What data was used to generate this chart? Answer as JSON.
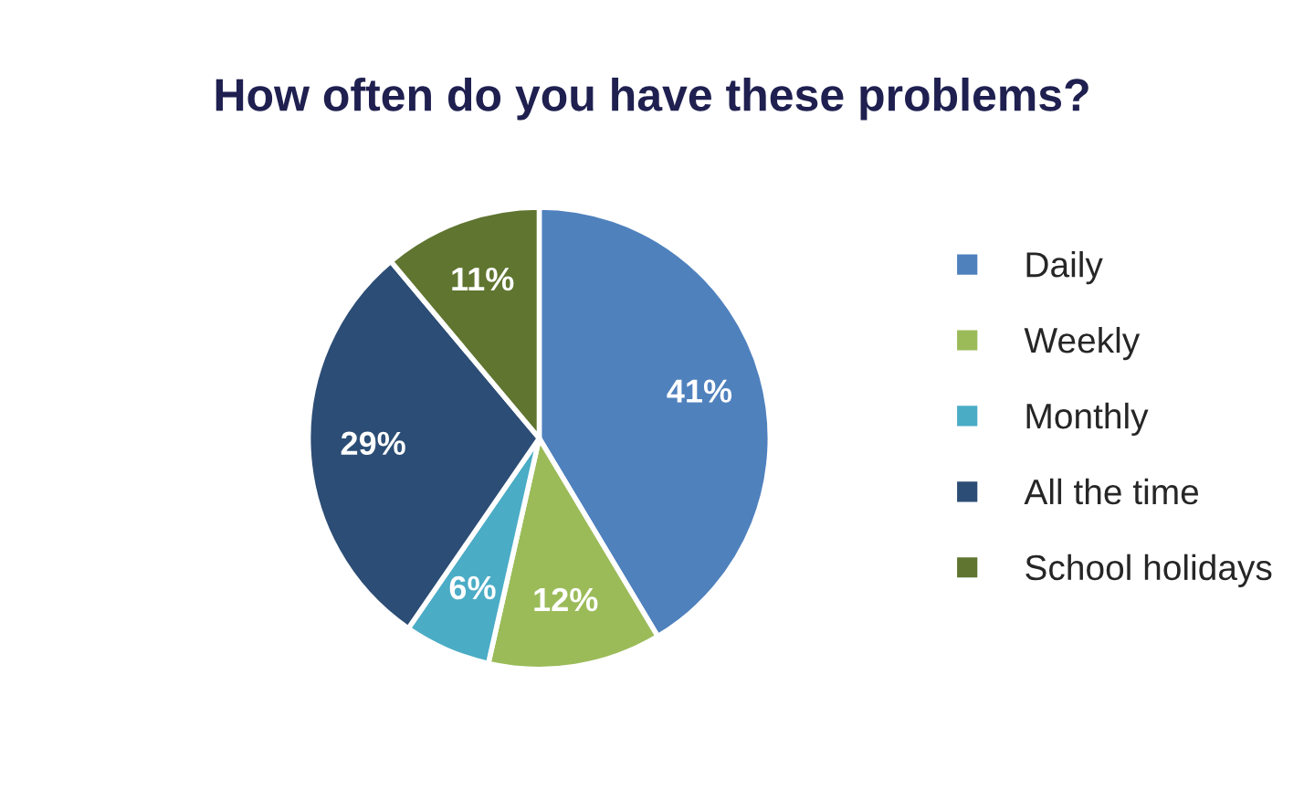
{
  "chart_data": {
    "type": "pie",
    "title": "How often do you have these problems?",
    "categories": [
      "Daily",
      "Weekly",
      "Monthly",
      "All the time",
      "School holidays"
    ],
    "values": [
      41,
      12,
      6,
      29,
      11
    ],
    "colors": [
      "#4f81bd",
      "#9bbb59",
      "#4bacc6",
      "#2c4d75",
      "#5f7530"
    ],
    "value_labels": [
      "41%",
      "12%",
      "6%",
      "29%",
      "11%"
    ],
    "legend": "right"
  }
}
